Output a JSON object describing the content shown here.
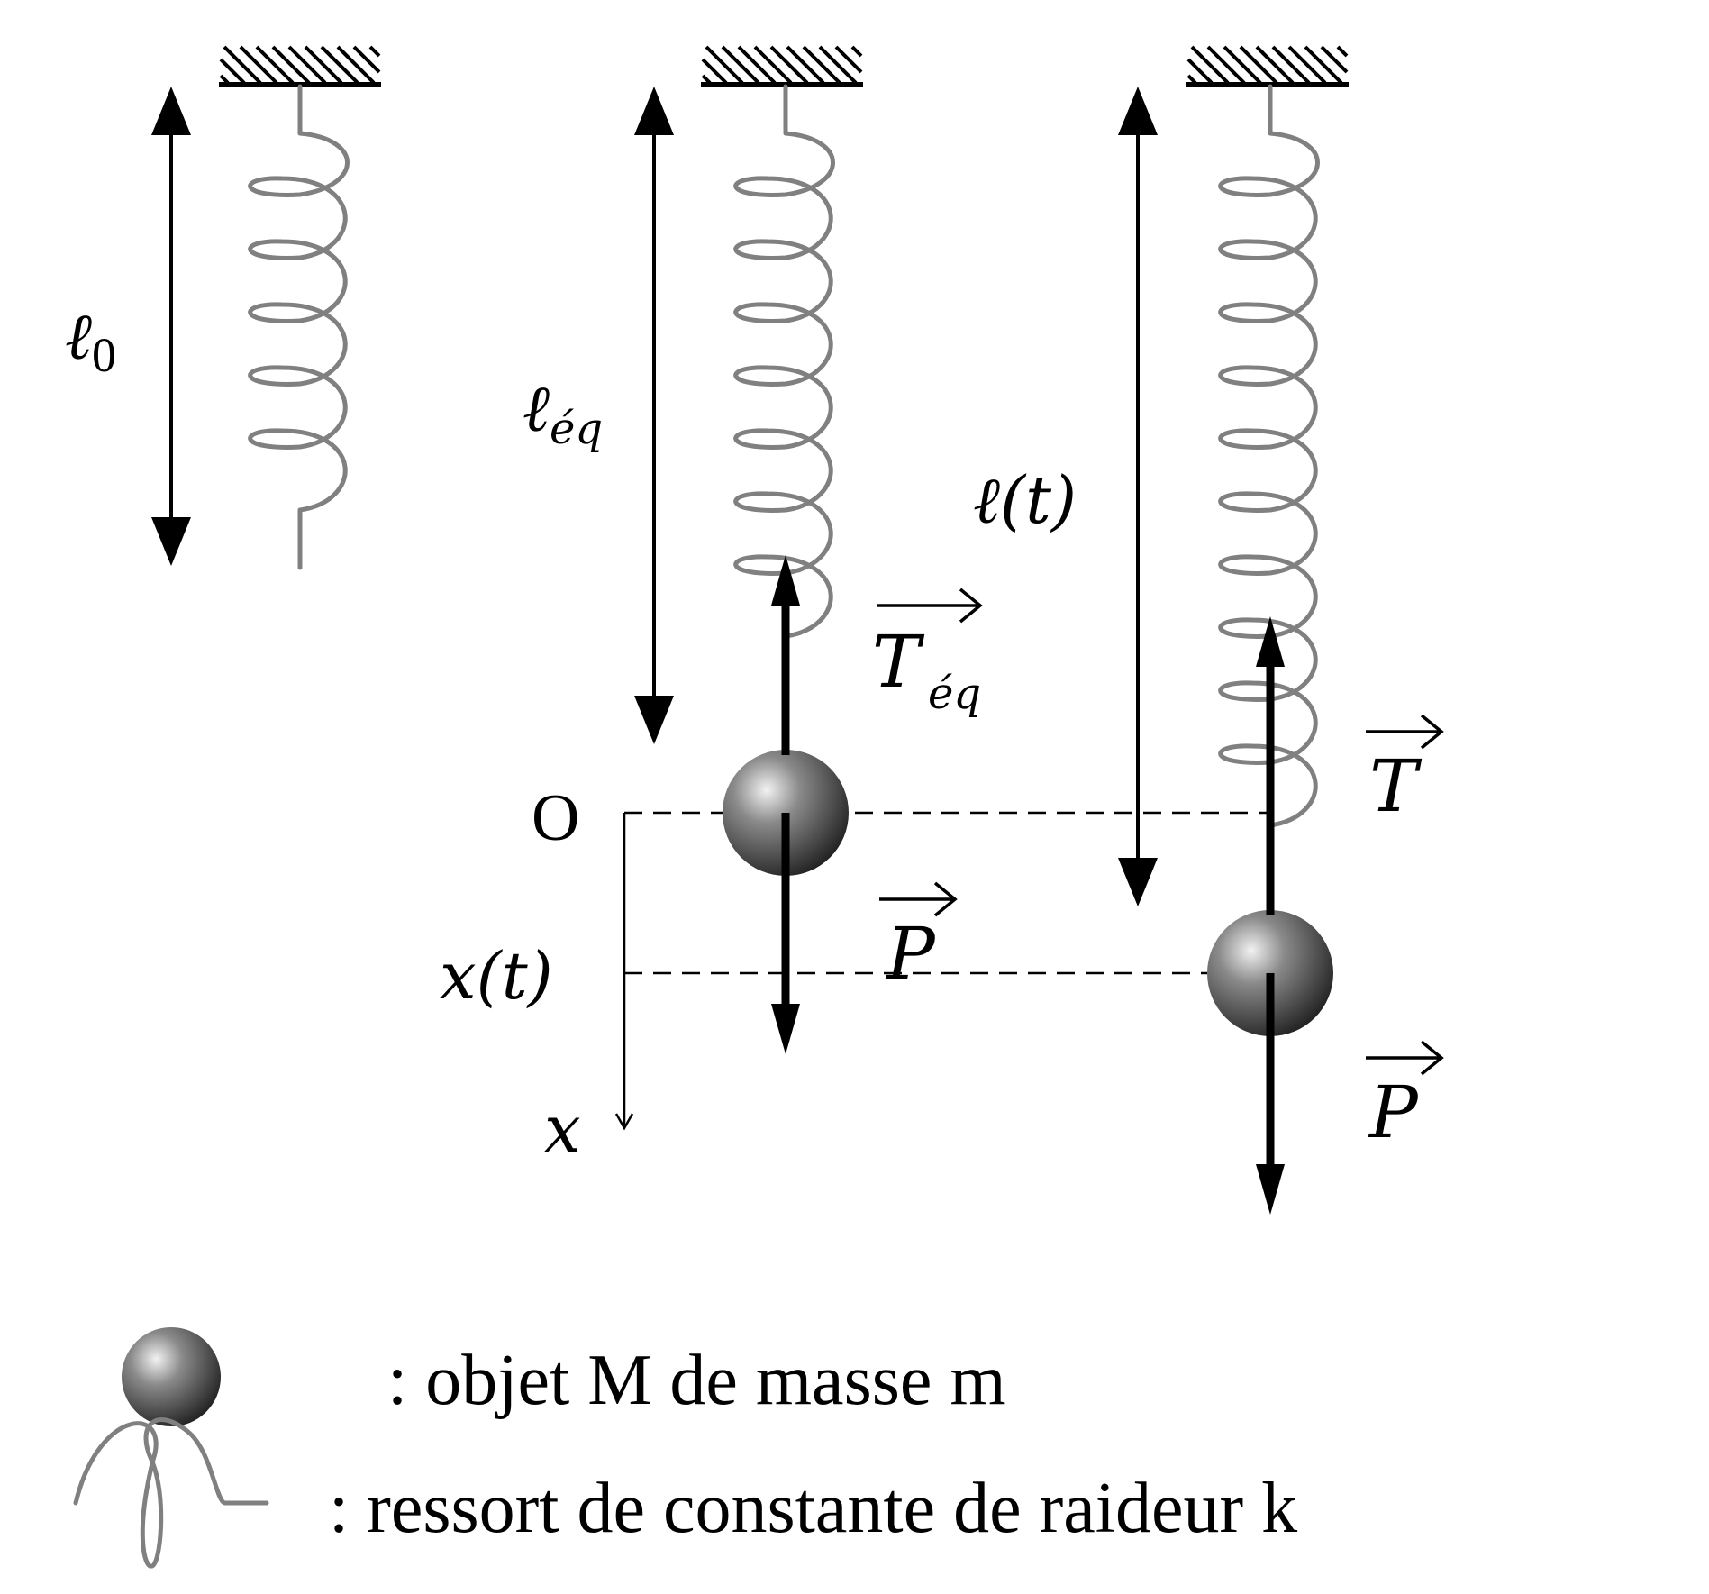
{
  "labels": {
    "l0": "ℓ",
    "l0_sub": "0",
    "leq": "ℓ",
    "leq_sub": "éq",
    "lt": "ℓ(t)",
    "origin": "O",
    "xt": "x(t)",
    "x_axis": "x",
    "T_eq": "T",
    "T_eq_sub": "éq",
    "P1": "P",
    "T": "T",
    "P2": "P"
  },
  "legend": {
    "mass_label": ": objet M de masse m",
    "spring_label": ": ressort de constante de raideur k"
  },
  "colors": {
    "spring": "#808080",
    "ink": "#000000",
    "mass_light": "#eeeeee",
    "mass_dark": "#2a2a2a"
  }
}
